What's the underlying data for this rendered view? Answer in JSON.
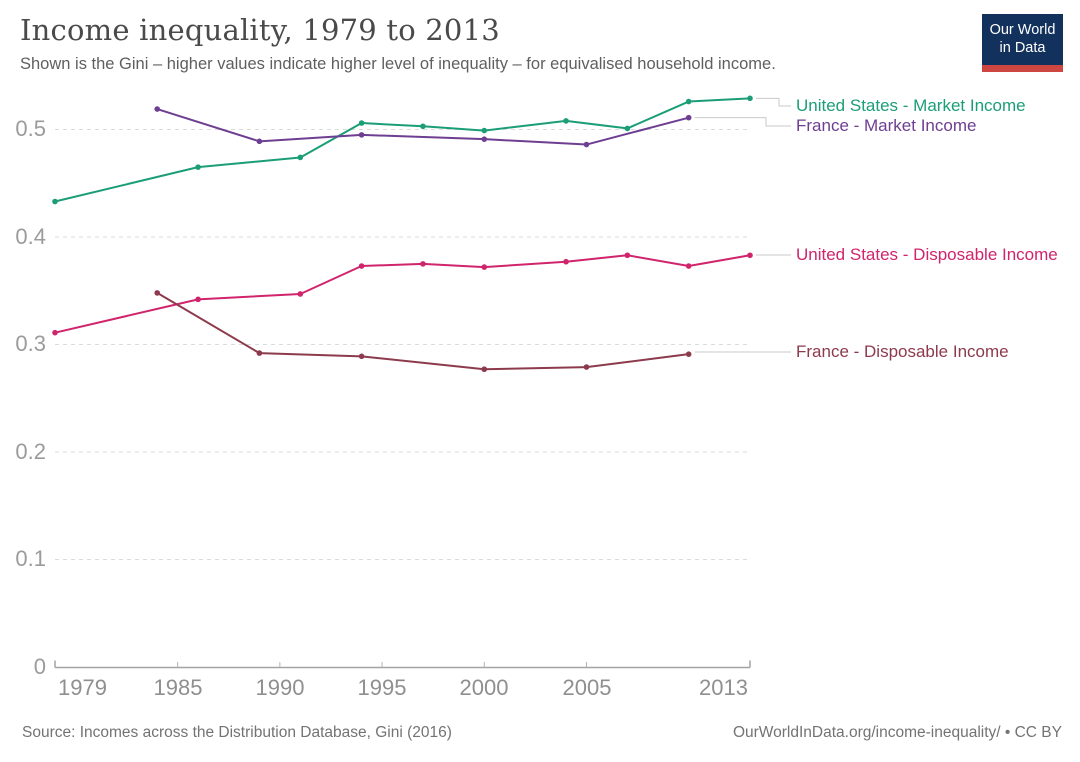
{
  "header": {
    "title": "Income inequality, 1979 to 2013",
    "subtitle": "Shown is the Gini – higher values indicate higher level of inequality – for equivalised household income.",
    "logo": {
      "line1": "Our World",
      "line2": "in Data",
      "background_color": "#12315c",
      "stripe_color": "#cd4641",
      "text_color": "#ffffff"
    }
  },
  "chart_data": {
    "type": "line",
    "title": "Income inequality, 1979 to 2013",
    "xlabel": "",
    "ylabel": "",
    "xlim": [
      1979,
      2013
    ],
    "ylim": [
      0,
      0.55
    ],
    "grid": true,
    "gridline_style": "dashed",
    "legend_position": "right",
    "x_tick_labels": [
      "1979",
      "1985",
      "1990",
      "1995",
      "2000",
      "2005",
      "2013"
    ],
    "y_tick_labels": [
      "0.5",
      "0.4",
      "0.3",
      "0.2",
      "0.1",
      "0"
    ],
    "series": [
      {
        "name": "United States - Market Income",
        "color": "#1b9e77",
        "x": [
          1979,
          1986,
          1991,
          1994,
          1997,
          2000,
          2004,
          2007,
          2010,
          2013
        ],
        "values": [
          0.433,
          0.465,
          0.474,
          0.506,
          0.503,
          0.499,
          0.508,
          0.501,
          0.526,
          0.529
        ]
      },
      {
        "name": "France - Market Income",
        "color": "#6d3e91",
        "x": [
          1984,
          1989,
          1994,
          2000,
          2005,
          2010
        ],
        "values": [
          0.519,
          0.489,
          0.495,
          0.491,
          0.486,
          0.511
        ]
      },
      {
        "name": "United States - Disposable Income",
        "color": "#d0246c",
        "x": [
          1979,
          1986,
          1991,
          1994,
          1997,
          2000,
          2004,
          2007,
          2010,
          2013
        ],
        "values": [
          0.311,
          0.342,
          0.347,
          0.373,
          0.375,
          0.372,
          0.377,
          0.383,
          0.373,
          0.383
        ]
      },
      {
        "name": "France - Disposable Income",
        "color": "#8c3a4c",
        "x": [
          1984,
          1989,
          1994,
          2000,
          2005,
          2010
        ],
        "values": [
          0.348,
          0.292,
          0.289,
          0.277,
          0.279,
          0.291
        ]
      }
    ]
  },
  "footer": {
    "source": "Source: Incomes across the Distribution Database, Gini (2016)",
    "credit": "OurWorldInData.org/income-inequality/ • CC BY"
  }
}
